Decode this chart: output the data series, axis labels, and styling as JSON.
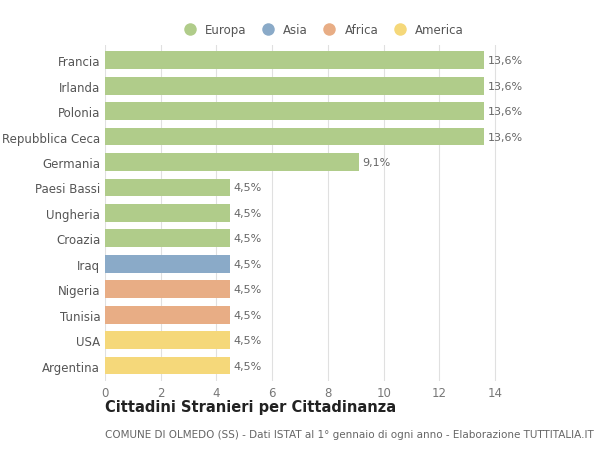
{
  "title": "Cittadini Stranieri per Cittadinanza",
  "subtitle": "COMUNE DI OLMEDO (SS) - Dati ISTAT al 1° gennaio di ogni anno - Elaborazione TUTTITALIA.IT",
  "categories": [
    "Francia",
    "Irlanda",
    "Polonia",
    "Repubblica Ceca",
    "Germania",
    "Paesi Bassi",
    "Ungheria",
    "Croazia",
    "Iraq",
    "Nigeria",
    "Tunisia",
    "USA",
    "Argentina"
  ],
  "values": [
    13.6,
    13.6,
    13.6,
    13.6,
    9.1,
    4.5,
    4.5,
    4.5,
    4.5,
    4.5,
    4.5,
    4.5,
    4.5
  ],
  "labels": [
    "13,6%",
    "13,6%",
    "13,6%",
    "13,6%",
    "9,1%",
    "4,5%",
    "4,5%",
    "4,5%",
    "4,5%",
    "4,5%",
    "4,5%",
    "4,5%",
    "4,5%"
  ],
  "bar_colors": [
    "#b0cc8a",
    "#b0cc8a",
    "#b0cc8a",
    "#b0cc8a",
    "#b0cc8a",
    "#b0cc8a",
    "#b0cc8a",
    "#b0cc8a",
    "#8aaac8",
    "#e8ad85",
    "#e8ad85",
    "#f5d87a",
    "#f5d87a"
  ],
  "legend": [
    {
      "label": "Europa",
      "color": "#b0cc8a"
    },
    {
      "label": "Asia",
      "color": "#8aaac8"
    },
    {
      "label": "Africa",
      "color": "#e8ad85"
    },
    {
      "label": "America",
      "color": "#f5d87a"
    }
  ],
  "xlim": [
    0,
    15.5
  ],
  "xticks": [
    0,
    2,
    4,
    6,
    8,
    10,
    12,
    14
  ],
  "background_color": "#ffffff",
  "grid_color": "#e0e0e0",
  "bar_height": 0.7,
  "title_fontsize": 10.5,
  "subtitle_fontsize": 7.5,
  "tick_fontsize": 8.5,
  "label_fontsize": 8.0,
  "ytick_fontsize": 8.5
}
